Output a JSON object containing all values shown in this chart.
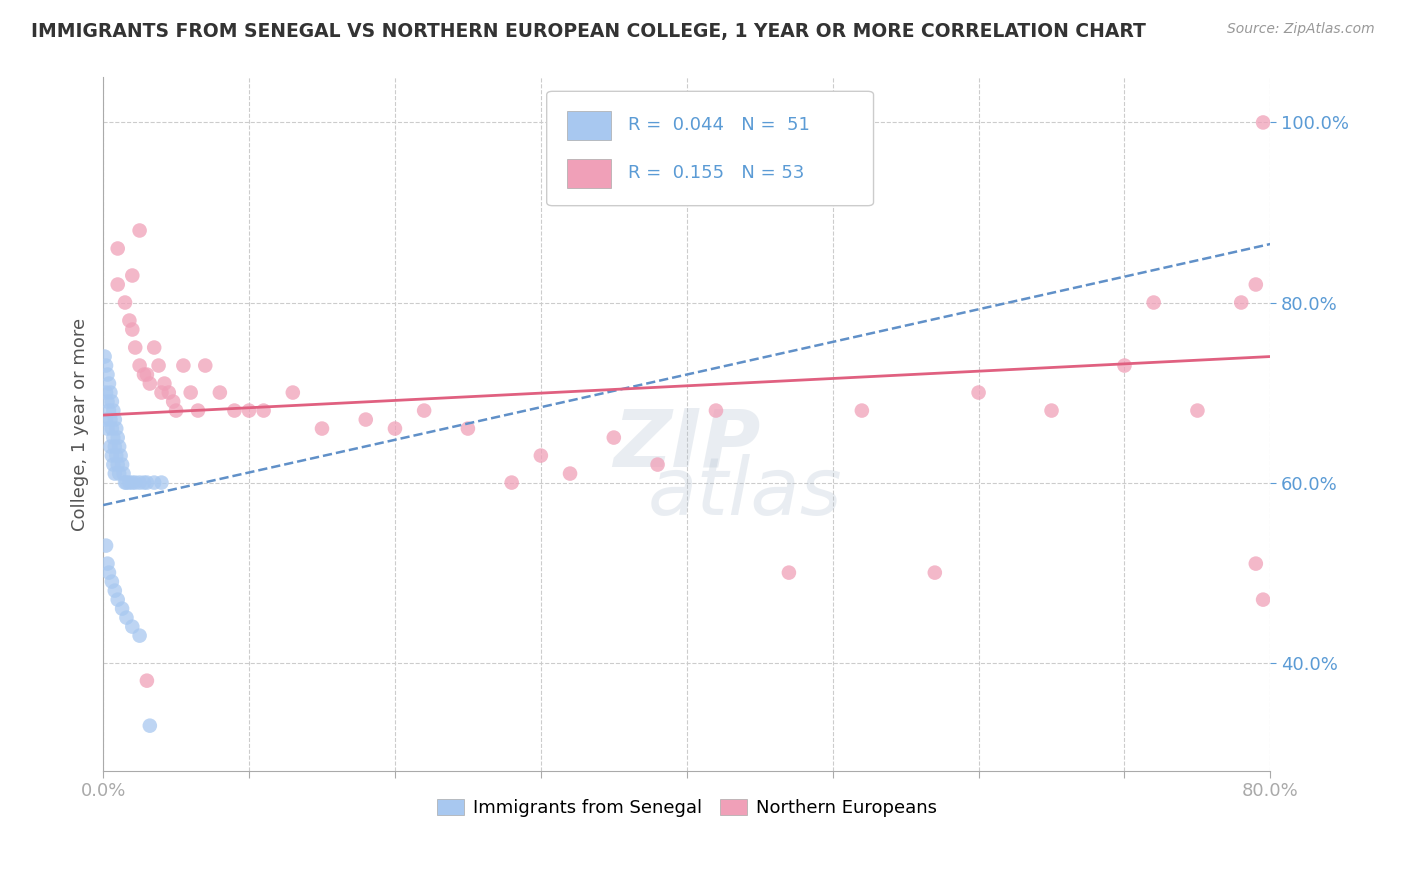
{
  "title": "IMMIGRANTS FROM SENEGAL VS NORTHERN EUROPEAN COLLEGE, 1 YEAR OR MORE CORRELATION CHART",
  "source": "Source: ZipAtlas.com",
  "ylabel": "College, 1 year or more",
  "xlim": [
    0.0,
    0.8
  ],
  "ylim": [
    0.28,
    1.05
  ],
  "xticks": [
    0.0,
    0.1,
    0.2,
    0.3,
    0.4,
    0.5,
    0.6,
    0.7,
    0.8
  ],
  "xticklabels": [
    "0.0%",
    "",
    "",
    "",
    "",
    "",
    "",
    "",
    "80.0%"
  ],
  "yticks": [
    0.4,
    0.6,
    0.8,
    1.0
  ],
  "yticklabels": [
    "40.0%",
    "60.0%",
    "80.0%",
    "100.0%"
  ],
  "legend_label1": "Immigrants from Senegal",
  "legend_label2": "Northern Europeans",
  "color_blue": "#A8C8F0",
  "color_pink": "#F0A0B8",
  "color_blue_line": "#6090C8",
  "color_pink_line": "#E06080",
  "background_color": "#FFFFFF",
  "grid_color": "#CCCCCC",
  "blue_x": [
    0.001,
    0.002,
    0.002,
    0.002,
    0.003,
    0.003,
    0.003,
    0.004,
    0.004,
    0.005,
    0.005,
    0.005,
    0.006,
    0.006,
    0.006,
    0.007,
    0.007,
    0.007,
    0.008,
    0.008,
    0.008,
    0.009,
    0.009,
    0.01,
    0.01,
    0.011,
    0.011,
    0.012,
    0.013,
    0.014,
    0.015,
    0.016,
    0.018,
    0.02,
    0.022,
    0.025,
    0.028,
    0.03,
    0.035,
    0.04,
    0.002,
    0.003,
    0.004,
    0.006,
    0.008,
    0.01,
    0.013,
    0.016,
    0.02,
    0.025,
    0.032
  ],
  "blue_y": [
    0.74,
    0.73,
    0.7,
    0.67,
    0.72,
    0.69,
    0.66,
    0.71,
    0.68,
    0.7,
    0.67,
    0.64,
    0.69,
    0.66,
    0.63,
    0.68,
    0.65,
    0.62,
    0.67,
    0.64,
    0.61,
    0.66,
    0.63,
    0.65,
    0.62,
    0.64,
    0.61,
    0.63,
    0.62,
    0.61,
    0.6,
    0.6,
    0.6,
    0.6,
    0.6,
    0.6,
    0.6,
    0.6,
    0.6,
    0.6,
    0.53,
    0.51,
    0.5,
    0.49,
    0.48,
    0.47,
    0.46,
    0.45,
    0.44,
    0.43,
    0.33
  ],
  "pink_x": [
    0.01,
    0.015,
    0.018,
    0.02,
    0.022,
    0.025,
    0.025,
    0.028,
    0.03,
    0.032,
    0.035,
    0.038,
    0.04,
    0.042,
    0.045,
    0.048,
    0.05,
    0.055,
    0.06,
    0.065,
    0.07,
    0.08,
    0.09,
    0.1,
    0.11,
    0.13,
    0.15,
    0.18,
    0.2,
    0.22,
    0.25,
    0.28,
    0.3,
    0.32,
    0.35,
    0.38,
    0.42,
    0.47,
    0.52,
    0.57,
    0.6,
    0.65,
    0.7,
    0.72,
    0.75,
    0.78,
    0.79,
    0.795,
    0.01,
    0.02,
    0.03,
    0.79,
    0.795
  ],
  "pink_y": [
    0.82,
    0.8,
    0.78,
    0.77,
    0.75,
    0.73,
    0.88,
    0.72,
    0.72,
    0.71,
    0.75,
    0.73,
    0.7,
    0.71,
    0.7,
    0.69,
    0.68,
    0.73,
    0.7,
    0.68,
    0.73,
    0.7,
    0.68,
    0.68,
    0.68,
    0.7,
    0.66,
    0.67,
    0.66,
    0.68,
    0.66,
    0.6,
    0.63,
    0.61,
    0.65,
    0.62,
    0.68,
    0.5,
    0.68,
    0.5,
    0.7,
    0.68,
    0.73,
    0.8,
    0.68,
    0.8,
    0.82,
    1.0,
    0.86,
    0.83,
    0.38,
    0.51,
    0.47
  ],
  "blue_line_x": [
    0.0,
    0.8
  ],
  "blue_line_y": [
    0.575,
    0.865
  ],
  "pink_line_x": [
    0.0,
    0.8
  ],
  "pink_line_y": [
    0.675,
    0.74
  ]
}
